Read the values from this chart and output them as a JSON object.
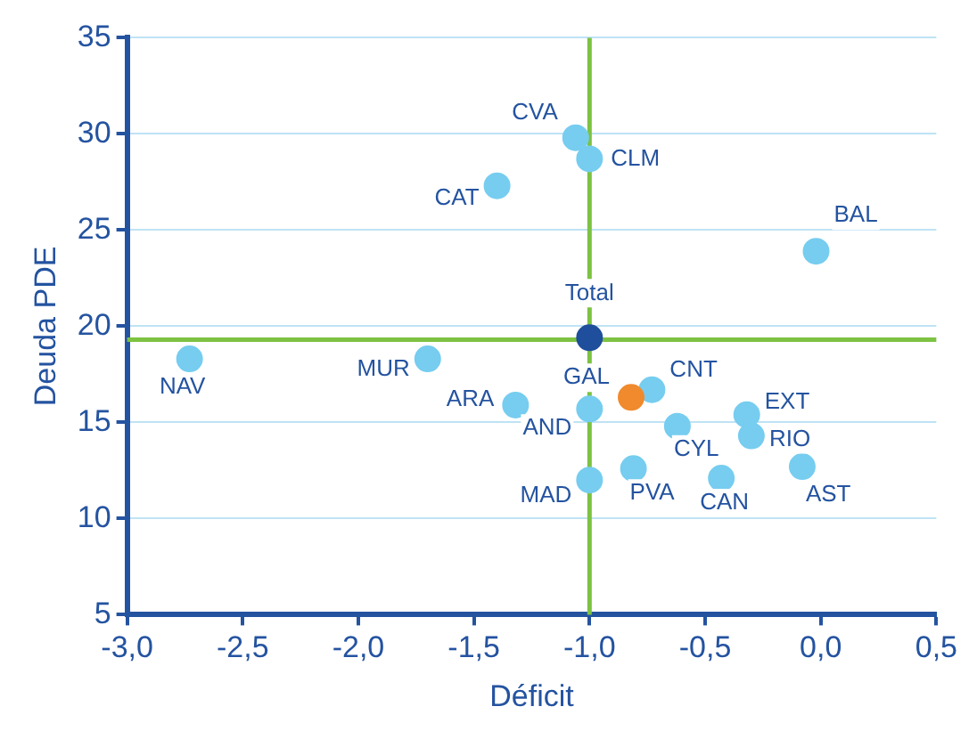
{
  "chart_data": {
    "type": "scatter",
    "xlabel": "Déficit",
    "ylabel": "Deuda PDE",
    "xlim": [
      -3.0,
      0.5
    ],
    "xticks": [
      {
        "value": -3.0,
        "label": "-3,0"
      },
      {
        "value": -2.5,
        "label": "-2,5"
      },
      {
        "value": -2.0,
        "label": "-2,0"
      },
      {
        "value": -1.5,
        "label": "-1,5"
      },
      {
        "value": -1.0,
        "label": "-1,0"
      },
      {
        "value": -0.5,
        "label": "-0,5"
      },
      {
        "value": 0.0,
        "label": "0,0"
      },
      {
        "value": 0.5,
        "label": "0,5"
      }
    ],
    "ylim": [
      5,
      35
    ],
    "yticks": [
      5,
      10,
      15,
      20,
      25,
      30,
      35
    ],
    "grid": "y",
    "legend": false,
    "marker": "circle",
    "ref_lines": [
      {
        "axis": "x",
        "value": -1.0,
        "color": "#7dc242"
      },
      {
        "axis": "y",
        "value": 19.3,
        "color": "#7dc242"
      }
    ],
    "series": [
      {
        "name": "CVA",
        "color": "#76cdf0",
        "x": [
          -1.06
        ],
        "values": [
          29.8
        ]
      },
      {
        "name": "CLM",
        "color": "#76cdf0",
        "x": [
          -1.0
        ],
        "values": [
          28.7
        ]
      },
      {
        "name": "CAT",
        "color": "#76cdf0",
        "x": [
          -1.4
        ],
        "values": [
          27.3
        ]
      },
      {
        "name": "BAL",
        "color": "#76cdf0",
        "x": [
          -0.02
        ],
        "values": [
          23.9
        ]
      },
      {
        "name": "Total",
        "color": "#1f4e9c",
        "x": [
          -1.0
        ],
        "values": [
          19.4
        ]
      },
      {
        "name": "NAV",
        "color": "#76cdf0",
        "x": [
          -2.73
        ],
        "values": [
          18.3
        ]
      },
      {
        "name": "MUR",
        "color": "#76cdf0",
        "x": [
          -1.7
        ],
        "values": [
          18.3
        ]
      },
      {
        "name": "GAL",
        "color": "#f08a2c",
        "x": [
          -0.82
        ],
        "values": [
          16.3
        ]
      },
      {
        "name": "CNT",
        "color": "#76cdf0",
        "x": [
          -0.73
        ],
        "values": [
          16.7
        ]
      },
      {
        "name": "ARA",
        "color": "#76cdf0",
        "x": [
          -1.32
        ],
        "values": [
          15.9
        ]
      },
      {
        "name": "AND",
        "color": "#76cdf0",
        "x": [
          -1.0
        ],
        "values": [
          15.7
        ]
      },
      {
        "name": "CYL",
        "color": "#76cdf0",
        "x": [
          -0.62
        ],
        "values": [
          14.8
        ]
      },
      {
        "name": "EXT",
        "color": "#76cdf0",
        "x": [
          -0.32
        ],
        "values": [
          15.4
        ]
      },
      {
        "name": "RIO",
        "color": "#76cdf0",
        "x": [
          -0.3
        ],
        "values": [
          14.3
        ]
      },
      {
        "name": "AST",
        "color": "#76cdf0",
        "x": [
          -0.08
        ],
        "values": [
          12.7
        ]
      },
      {
        "name": "CAN",
        "color": "#76cdf0",
        "x": [
          -0.43
        ],
        "values": [
          12.1
        ]
      },
      {
        "name": "PVA",
        "color": "#76cdf0",
        "x": [
          -0.81
        ],
        "values": [
          12.6
        ]
      },
      {
        "name": "MAD",
        "color": "#76cdf0",
        "x": [
          -1.0
        ],
        "values": [
          12.0
        ]
      }
    ]
  }
}
